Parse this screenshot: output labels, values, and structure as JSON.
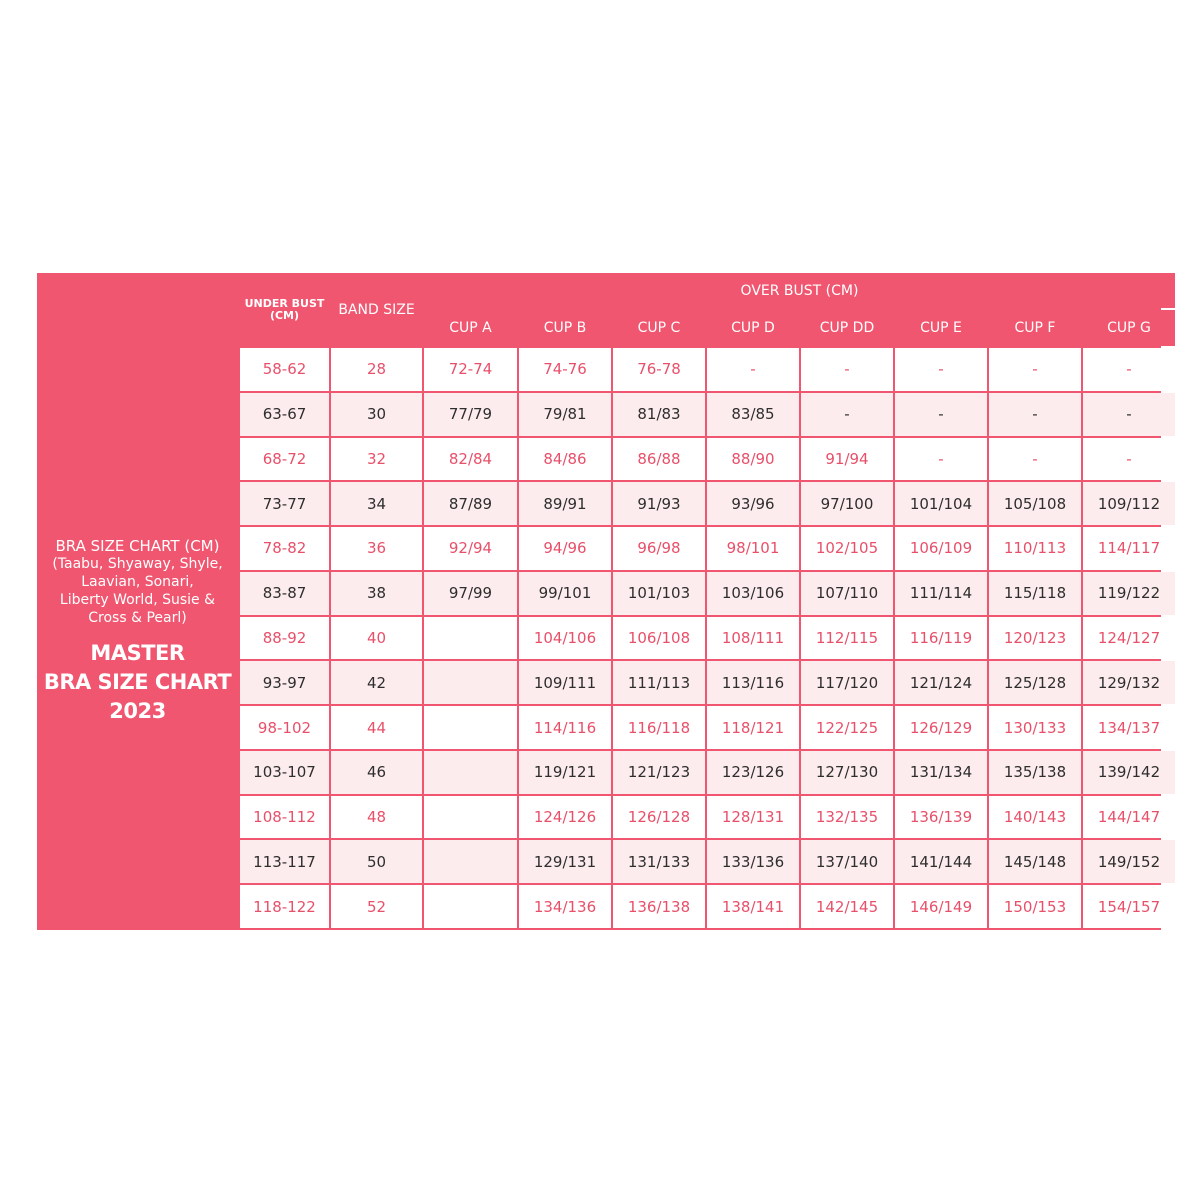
{
  "colors": {
    "accent": "#f0566f",
    "pink_text": "#e8506a",
    "light_row": "#fdeced",
    "dark_text": "#2e2e2e"
  },
  "left_panel": {
    "subtitle_lines": [
      "BRA SIZE CHART (CM)",
      "(Taabu, Shyaway, Shyle,",
      "Laavian, Sonari,",
      "Liberty World, Susie &",
      "Cross & Pearl)"
    ],
    "title_lines": [
      "MASTER",
      "BRA SIZE CHART",
      "2023"
    ]
  },
  "header": {
    "under_bust": [
      "UNDER BUST",
      "(CM)"
    ],
    "band_size": "BAND SIZE",
    "over_bust": "OVER BUST  (CM)",
    "cups": [
      "CUP A",
      "CUP B",
      "CUP C",
      "CUP D",
      "CUP DD",
      "CUP E",
      "CUP F",
      "CUP G"
    ]
  },
  "rows": [
    [
      "58-62",
      "28",
      "72-74",
      "74-76",
      "76-78",
      "-",
      "-",
      "-",
      "-",
      "-"
    ],
    [
      "63-67",
      "30",
      "77/79",
      "79/81",
      "81/83",
      "83/85",
      "-",
      "-",
      "-",
      "-"
    ],
    [
      "68-72",
      "32",
      "82/84",
      "84/86",
      "86/88",
      "88/90",
      "91/94",
      "-",
      "-",
      "-"
    ],
    [
      "73-77",
      "34",
      "87/89",
      "89/91",
      "91/93",
      "93/96",
      "97/100",
      "101/104",
      "105/108",
      "109/112"
    ],
    [
      "78-82",
      "36",
      "92/94",
      "94/96",
      "96/98",
      "98/101",
      "102/105",
      "106/109",
      "110/113",
      "114/117"
    ],
    [
      "83-87",
      "38",
      "97/99",
      "99/101",
      "101/103",
      "103/106",
      "107/110",
      "111/114",
      "115/118",
      "119/122"
    ],
    [
      "88-92",
      "40",
      "",
      "104/106",
      "106/108",
      "108/111",
      "112/115",
      "116/119",
      "120/123",
      "124/127"
    ],
    [
      "93-97",
      "42",
      "",
      "109/111",
      "111/113",
      "113/116",
      "117/120",
      "121/124",
      "125/128",
      "129/132"
    ],
    [
      "98-102",
      "44",
      "",
      "114/116",
      "116/118",
      "118/121",
      "122/125",
      "126/129",
      "130/133",
      "134/137"
    ],
    [
      "103-107",
      "46",
      "",
      "119/121",
      "121/123",
      "123/126",
      "127/130",
      "131/134",
      "135/138",
      "139/142"
    ],
    [
      "108-112",
      "48",
      "",
      "124/126",
      "126/128",
      "128/131",
      "132/135",
      "136/139",
      "140/143",
      "144/147"
    ],
    [
      "113-117",
      "50",
      "",
      "129/131",
      "131/133",
      "133/136",
      "137/140",
      "141/144",
      "145/148",
      "149/152"
    ],
    [
      "118-122",
      "52",
      "",
      "134/136",
      "136/138",
      "138/141",
      "142/145",
      "146/149",
      "150/153",
      "154/157"
    ]
  ]
}
